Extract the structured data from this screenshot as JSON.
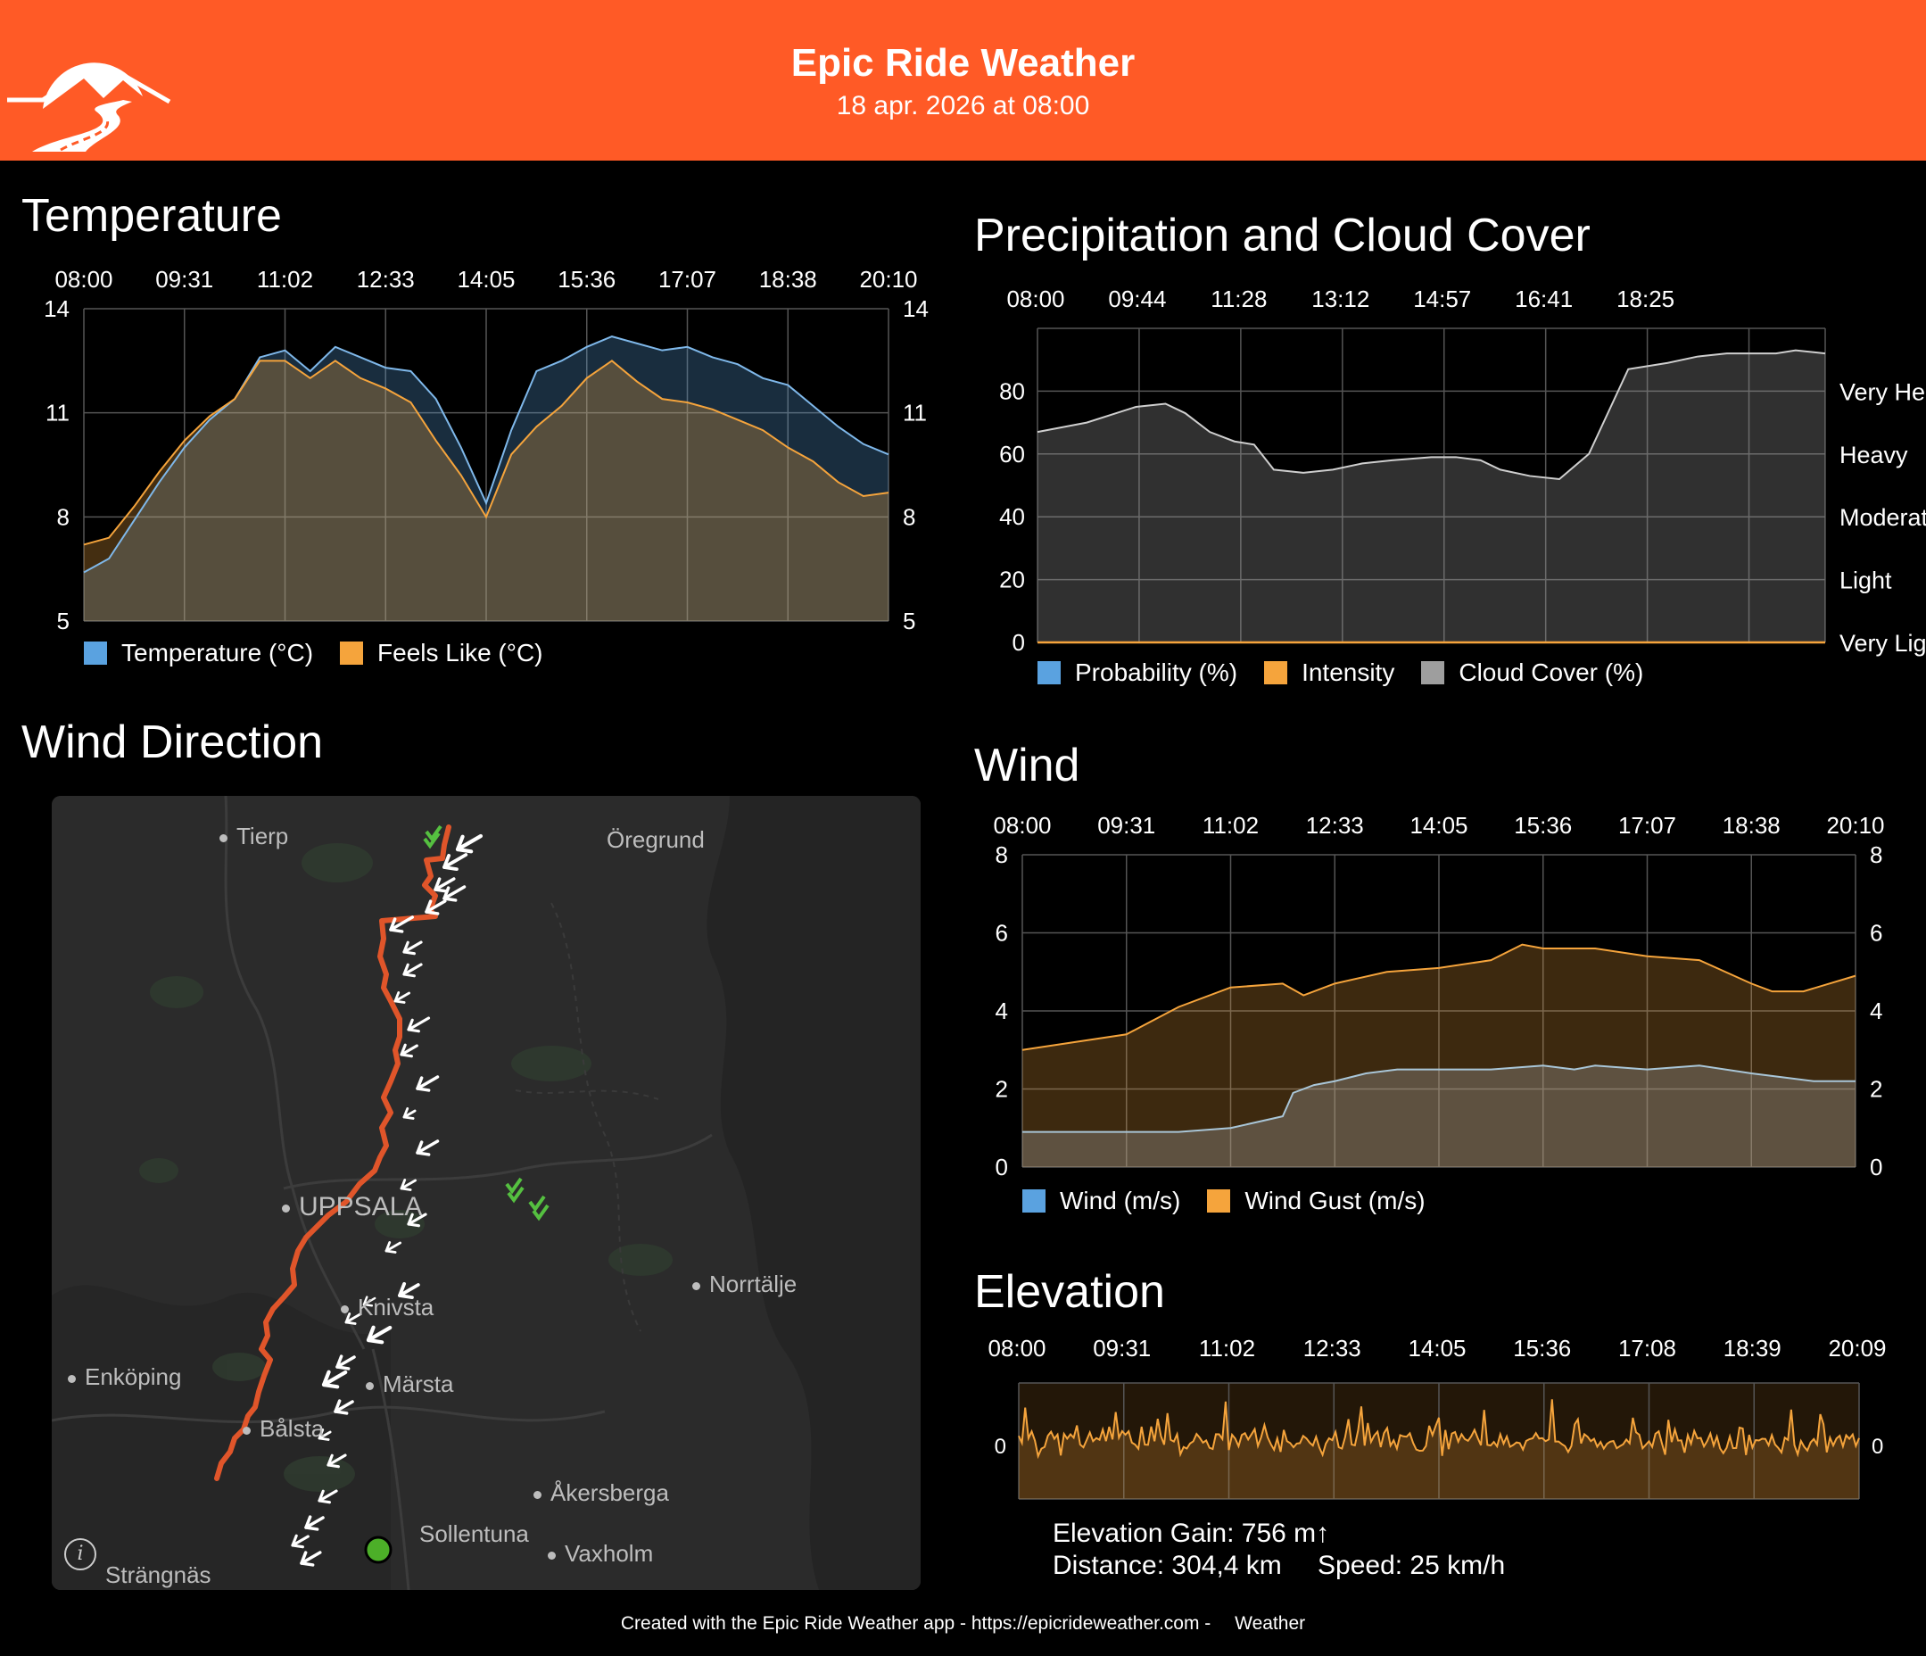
{
  "header": {
    "title": "Epic Ride Weather",
    "subtitle": "18 apr. 2026 at 08:00"
  },
  "temperature": {
    "title": "Temperature",
    "legend": [
      {
        "label": "Temperature (°C)",
        "color": "#5aa2e0"
      },
      {
        "label": "Feels Like (°C)",
        "color": "#f5a43c"
      }
    ]
  },
  "precipitation": {
    "title": "Precipitation and Cloud Cover",
    "legend": [
      {
        "label": "Probability (%)",
        "color": "#5aa2e0"
      },
      {
        "label": "Intensity",
        "color": "#f5a43c"
      },
      {
        "label": "Cloud Cover (%)",
        "color": "#9e9e9e"
      }
    ]
  },
  "wind_direction": {
    "title": "Wind Direction",
    "places": {
      "tierp": "Tierp",
      "oregrund": "Öregrund",
      "uppsala": "UPPSALA",
      "norrtalje": "Norrtälje",
      "knivsta": "Knivsta",
      "enkoping": "Enköping",
      "marsta": "Märsta",
      "balsta": "Bålsta",
      "akersberga": "Åkersberga",
      "sollentuna": "Sollentuna",
      "vaxholm": "Vaxholm",
      "strangnas": "Strängnäs"
    }
  },
  "wind": {
    "title": "Wind",
    "legend": [
      {
        "label": "Wind (m/s)",
        "color": "#5aa2e0"
      },
      {
        "label": "Wind Gust (m/s)",
        "color": "#f5a43c"
      }
    ]
  },
  "elevation": {
    "title": "Elevation",
    "gain": "Elevation Gain: 756 m↑",
    "distance": "Distance: 304,4 km",
    "speed": "Speed: 25 km/h"
  },
  "footer": "Created with the Epic Ride Weather app - https://epicrideweather.com -  Weather",
  "chart_data": [
    {
      "type": "area",
      "name_ref": "temperature",
      "x": [
        "08:00",
        "08:30",
        "09:00",
        "09:31",
        "10:00",
        "10:30",
        "11:02",
        "11:30",
        "12:00",
        "12:15",
        "12:33",
        "12:45",
        "13:00",
        "13:15",
        "13:30",
        "13:45",
        "14:05",
        "14:20",
        "14:40",
        "15:00",
        "15:20",
        "15:36",
        "15:50",
        "16:10",
        "16:30",
        "17:07",
        "17:30",
        "18:00",
        "18:38",
        "19:00",
        "19:20",
        "19:40",
        "20:10"
      ],
      "xticks": [
        "08:00",
        "09:31",
        "11:02",
        "12:33",
        "14:05",
        "15:36",
        "17:07",
        "18:38",
        "20:10"
      ],
      "series": [
        {
          "name": "Temperature (°C)",
          "values": [
            6.4,
            6.8,
            7.9,
            9.0,
            10.0,
            10.8,
            11.4,
            12.6,
            12.8,
            12.2,
            12.9,
            12.6,
            12.3,
            12.2,
            11.4,
            10.0,
            8.4,
            10.5,
            12.2,
            12.5,
            12.9,
            13.2,
            13.0,
            12.8,
            12.9,
            12.6,
            12.4,
            12.0,
            11.8,
            11.2,
            10.6,
            10.1,
            9.8
          ]
        },
        {
          "name": "Feels Like (°C)",
          "values": [
            7.2,
            7.4,
            8.3,
            9.3,
            10.2,
            10.9,
            11.4,
            12.5,
            12.5,
            12.0,
            12.5,
            12.0,
            11.7,
            11.3,
            10.2,
            9.2,
            8.0,
            9.8,
            10.6,
            11.2,
            12.0,
            12.5,
            11.9,
            11.4,
            11.3,
            11.1,
            10.8,
            10.5,
            10.0,
            9.6,
            9.0,
            8.6,
            8.7
          ]
        }
      ],
      "yticks": [
        5,
        8,
        11,
        14
      ],
      "ylim": [
        5,
        14
      ]
    },
    {
      "type": "area",
      "name_ref": "precipitation",
      "xticks": [
        "08:00",
        "09:44",
        "11:28",
        "13:12",
        "14:57",
        "16:41",
        "18:25"
      ],
      "series": [
        {
          "name": "Cloud Cover (%)",
          "x": [
            0,
            0.5,
            1.0,
            1.3,
            1.5,
            1.75,
            2.0,
            2.2,
            2.4,
            2.7,
            3.0,
            3.3,
            3.6,
            4.0,
            4.25,
            4.5,
            4.7,
            5.0,
            5.3,
            5.6,
            6.0,
            6.4,
            6.7,
            7.0,
            7.3,
            7.5,
            7.7,
            8.0
          ],
          "values": [
            67,
            70,
            75,
            76,
            73,
            67,
            64,
            63,
            55,
            54,
            55,
            57,
            58,
            59,
            59,
            58,
            55,
            53,
            52,
            60,
            87,
            89,
            91,
            92,
            92,
            92,
            93,
            92
          ]
        },
        {
          "name": "Probability (%)",
          "values": [
            0
          ]
        },
        {
          "name": "Intensity",
          "values": [
            0
          ]
        }
      ],
      "yticks_left": [
        0,
        20,
        40,
        60,
        80
      ],
      "yticks_right": [
        "Very Light",
        "Light",
        "Moderate",
        "Heavy",
        "Very Heavy"
      ],
      "ylim": [
        0,
        100
      ]
    },
    {
      "type": "area",
      "name_ref": "wind",
      "xticks": [
        "08:00",
        "09:31",
        "11:02",
        "12:33",
        "14:05",
        "15:36",
        "17:07",
        "18:38",
        "20:10"
      ],
      "series": [
        {
          "name": "Wind (m/s)",
          "x": [
            0,
            0.5,
            1.0,
            1.5,
            2.0,
            2.5,
            2.6,
            2.8,
            3.0,
            3.3,
            3.6,
            4.0,
            4.5,
            5.0,
            5.3,
            5.5,
            6.0,
            6.5,
            7.0,
            7.3,
            7.6,
            8.0
          ],
          "values": [
            0.9,
            0.9,
            0.9,
            0.9,
            1.0,
            1.3,
            1.9,
            2.1,
            2.2,
            2.4,
            2.5,
            2.5,
            2.5,
            2.6,
            2.5,
            2.6,
            2.5,
            2.6,
            2.4,
            2.3,
            2.2,
            2.2
          ]
        },
        {
          "name": "Wind Gust (m/s)",
          "x": [
            0,
            0.5,
            1.0,
            1.5,
            2.0,
            2.5,
            2.7,
            3.0,
            3.5,
            4.0,
            4.5,
            4.8,
            5.0,
            5.5,
            6.0,
            6.5,
            7.0,
            7.2,
            7.5,
            8.0
          ],
          "values": [
            3.0,
            3.2,
            3.4,
            4.1,
            4.6,
            4.7,
            4.4,
            4.7,
            5.0,
            5.1,
            5.3,
            5.7,
            5.6,
            5.6,
            5.4,
            5.3,
            4.7,
            4.5,
            4.5,
            4.9
          ]
        }
      ],
      "yticks": [
        0,
        2,
        4,
        6,
        8
      ],
      "ylim": [
        0,
        8
      ]
    },
    {
      "type": "area",
      "name_ref": "elevation",
      "xticks": [
        "08:00",
        "09:31",
        "11:02",
        "12:33",
        "14:05",
        "15:36",
        "17:08",
        "18:39",
        "20:09"
      ],
      "yticks": [
        0
      ],
      "series": [
        {
          "name": "Elevation",
          "values": []
        }
      ]
    }
  ]
}
